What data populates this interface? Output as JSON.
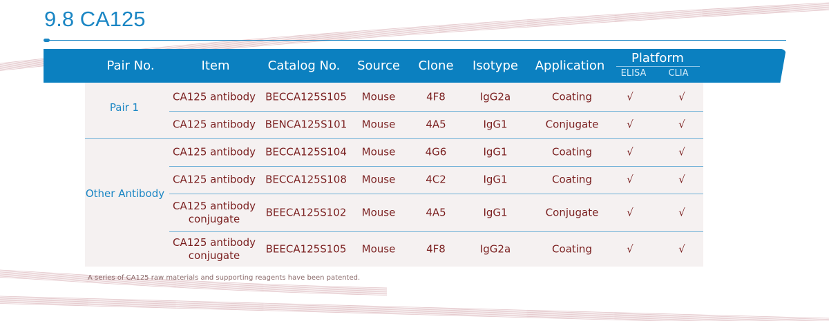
{
  "title": "9.8 CA125",
  "header": {
    "pair_no": "Pair No.",
    "item": "Item",
    "catalog_no": "Catalog No.",
    "source": "Source",
    "clone": "Clone",
    "isotype": "Isotype",
    "application": "Application",
    "platform": "Platform",
    "elisa": "ELISA",
    "clia": "CLIA"
  },
  "groups": [
    {
      "label": "Pair 1"
    },
    {
      "label": "Other Antibody"
    }
  ],
  "check_mark": "√",
  "rows": [
    {
      "item": "CA125 antibody",
      "catalog": "BECCA125S105",
      "source": "Mouse",
      "clone": "4F8",
      "isotype": "IgG2a",
      "application": "Coating",
      "elisa": true,
      "clia": true
    },
    {
      "item": "CA125 antibody",
      "catalog": "BENCA125S101",
      "source": "Mouse",
      "clone": "4A5",
      "isotype": "IgG1",
      "application": "Conjugate",
      "elisa": true,
      "clia": true
    },
    {
      "item": "CA125 antibody",
      "catalog": "BECCA125S104",
      "source": "Mouse",
      "clone": "4G6",
      "isotype": "IgG1",
      "application": "Coating",
      "elisa": true,
      "clia": true
    },
    {
      "item": "CA125 antibody",
      "catalog": "BECCA125S108",
      "source": "Mouse",
      "clone": "4C2",
      "isotype": "IgG1",
      "application": "Coating",
      "elisa": true,
      "clia": true
    },
    {
      "item": "CA125 antibody\nconjugate",
      "catalog": "BEECA125S102",
      "source": "Mouse",
      "clone": "4A5",
      "isotype": "IgG1",
      "application": "Conjugate",
      "elisa": true,
      "clia": true
    },
    {
      "item": "CA125 antibody\nconjugate",
      "catalog": "BEECA125S105",
      "source": "Mouse",
      "clone": "4F8",
      "isotype": "IgG2a",
      "application": "Coating",
      "elisa": true,
      "clia": true
    }
  ],
  "footnote": "A series of CA125 raw materials and supporting reagents have been patented.",
  "colors": {
    "accent": "#0b80c0",
    "text": "#7a1f1f",
    "row_bg": "#f5f1f1"
  }
}
